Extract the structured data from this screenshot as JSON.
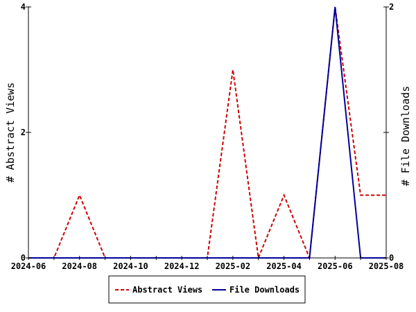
{
  "chart_data": {
    "type": "line",
    "x": [
      "2024-06",
      "2024-07",
      "2024-08",
      "2024-09",
      "2024-10",
      "2024-11",
      "2024-12",
      "2025-01",
      "2025-02",
      "2025-03",
      "2025-04",
      "2025-05",
      "2025-06",
      "2025-07",
      "2025-08"
    ],
    "x_tick_labels": [
      "2024-06",
      "2024-08",
      "2024-10",
      "2024-12",
      "2025-02",
      "2025-04",
      "2025-06",
      "2025-08"
    ],
    "xlim": [
      "2024-06",
      "2025-08"
    ],
    "series": [
      {
        "name": "Abstract Views",
        "axis": "left",
        "color": "#cc0000",
        "dash": "dashed",
        "values": [
          0,
          0,
          1,
          0,
          0,
          0,
          0,
          0,
          3,
          0,
          1,
          0,
          4,
          1,
          1
        ]
      },
      {
        "name": "File Downloads",
        "axis": "right",
        "color": "#000099",
        "dash": "solid",
        "values": [
          0,
          0,
          0,
          0,
          0,
          0,
          0,
          0,
          0,
          0,
          0,
          0,
          2,
          0,
          0
        ]
      }
    ],
    "ylabel": "# Abstract Views",
    "ylim": [
      0,
      4
    ],
    "y_ticks": [
      "0",
      "2",
      "4"
    ],
    "y2label": "# File Downloads",
    "y2lim": [
      0,
      2
    ],
    "y2_ticks": [
      "0",
      "1",
      "2"
    ],
    "y2_tick_labels": [
      "0",
      "",
      "2"
    ],
    "grid": false,
    "legend_position": "bottom"
  }
}
